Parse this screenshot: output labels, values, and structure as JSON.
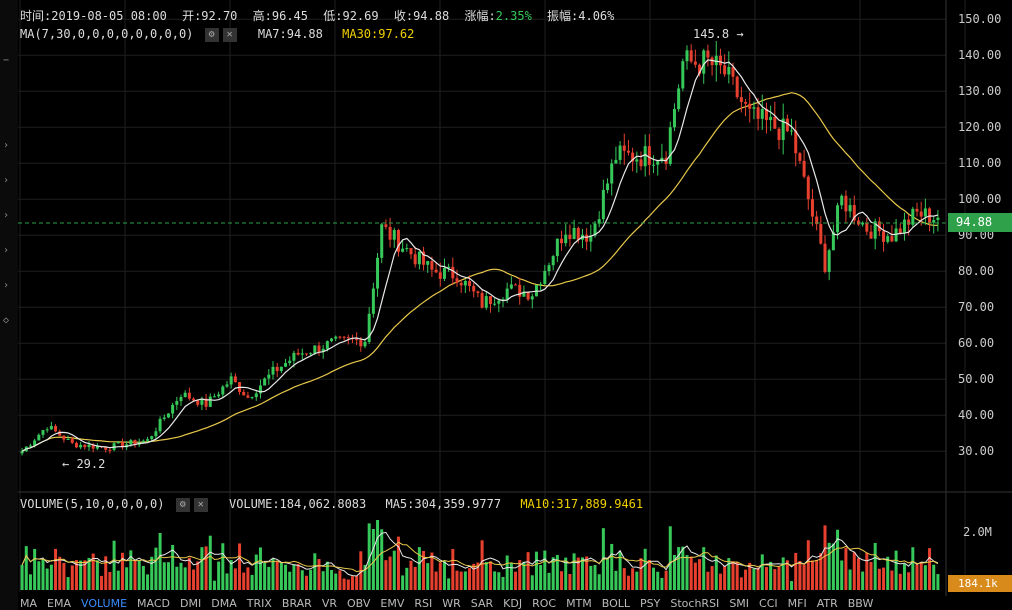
{
  "header": {
    "time_label": "时间:2019-08-05 08:00",
    "open_label": "开:92.70",
    "high_label": "高:96.45",
    "low_label": "低:92.69",
    "close_label": "收:94.88",
    "change_label": "涨幅:",
    "change_value": "2.35%",
    "amplitude_label": "振幅:4.06%"
  },
  "ma_panel": {
    "title": "MA(7,30,0,0,0,0,0,0,0,0)",
    "ma7_label": "MA7:94.88",
    "ma30_label": "MA30:97.62"
  },
  "volume_panel": {
    "title": "VOLUME(5,10,0,0,0,0)",
    "volume_label": "VOLUME:184,062.8083",
    "ma5_label": "MA5:304,359.9777",
    "ma10_label": "MA10:317,889.9461",
    "axis_label": "2.0M",
    "current_tag": "184.1k"
  },
  "current_price_tag": "94.88",
  "annotations": {
    "high": "145.8 →",
    "low": "← 29.2"
  },
  "price_axis_labels": [
    "150.00",
    "140.00",
    "130.00",
    "120.00",
    "110.00",
    "100.00",
    "90.00",
    "80.00",
    "70.00",
    "60.00",
    "50.00",
    "40.00",
    "30.00"
  ],
  "indicator_tabs": [
    "MA",
    "EMA",
    "VOLUME",
    "MACD",
    "DMI",
    "DMA",
    "TRIX",
    "BRAR",
    "VR",
    "OBV",
    "EMV",
    "RSI",
    "WR",
    "SAR",
    "KDJ",
    "ROC",
    "MTM",
    "BOLL",
    "PSY",
    "StochRSI",
    "SMI",
    "CCI",
    "MFI",
    "ATR",
    "BBW"
  ],
  "active_tab": "VOLUME",
  "colors": {
    "up": "#36c95a",
    "down": "#e8402f",
    "ma7": "#e8e8e8",
    "ma30": "#e8c84a",
    "grid": "#1f1f1f",
    "price_tag": "#2fa14b",
    "vol_tag": "#d88a1a"
  },
  "chart_data": {
    "type": "candlestick",
    "ylim": [
      22,
      152
    ],
    "grid": true,
    "price_path": [
      {
        "i": 0,
        "c": 30
      },
      {
        "i": 6,
        "c": 37
      },
      {
        "i": 12,
        "c": 32
      },
      {
        "i": 20,
        "c": 31
      },
      {
        "i": 30,
        "c": 33
      },
      {
        "i": 38,
        "c": 46
      },
      {
        "i": 44,
        "c": 43
      },
      {
        "i": 50,
        "c": 50
      },
      {
        "i": 54,
        "c": 45
      },
      {
        "i": 60,
        "c": 52
      },
      {
        "i": 66,
        "c": 57
      },
      {
        "i": 74,
        "c": 60
      },
      {
        "i": 82,
        "c": 61
      },
      {
        "i": 86,
        "c": 92
      },
      {
        "i": 92,
        "c": 86
      },
      {
        "i": 98,
        "c": 80
      },
      {
        "i": 104,
        "c": 79
      },
      {
        "i": 110,
        "c": 71
      },
      {
        "i": 116,
        "c": 75
      },
      {
        "i": 122,
        "c": 74
      },
      {
        "i": 130,
        "c": 92
      },
      {
        "i": 136,
        "c": 90
      },
      {
        "i": 142,
        "c": 112
      },
      {
        "i": 148,
        "c": 112
      },
      {
        "i": 154,
        "c": 113
      },
      {
        "i": 158,
        "c": 138
      },
      {
        "i": 164,
        "c": 138
      },
      {
        "i": 168,
        "c": 135
      },
      {
        "i": 174,
        "c": 123
      },
      {
        "i": 180,
        "c": 120
      },
      {
        "i": 184,
        "c": 118
      },
      {
        "i": 188,
        "c": 100
      },
      {
        "i": 192,
        "c": 82
      },
      {
        "i": 196,
        "c": 100
      },
      {
        "i": 202,
        "c": 92
      },
      {
        "i": 208,
        "c": 90
      },
      {
        "i": 214,
        "c": 96
      },
      {
        "i": 219,
        "c": 94.88
      }
    ],
    "ma7_label": "MA7",
    "ma30_label": "MA30",
    "high_marker": 145.8,
    "low_marker": 29.2,
    "last_close": 94.88,
    "volume_axis_max_label": "2.0M",
    "volume_last": "184.1k"
  }
}
